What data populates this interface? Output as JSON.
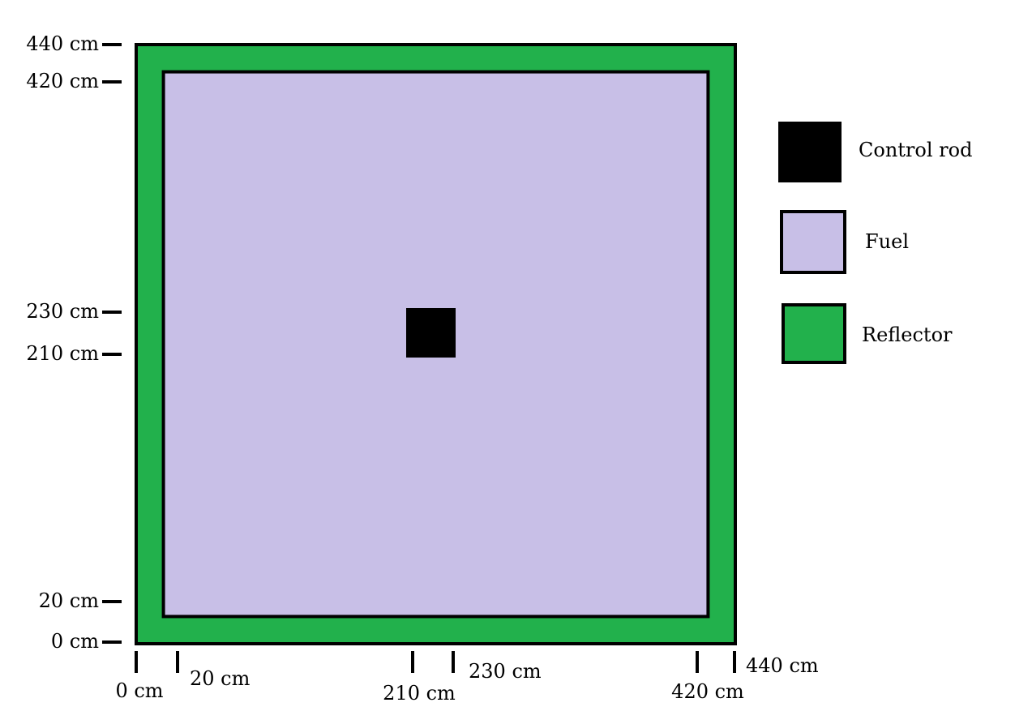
{
  "diagram": {
    "colors": {
      "reflector": "#22b14c",
      "fuel": "#c8bfe7",
      "control_rod": "#000000",
      "outline": "#000000"
    },
    "regions": {
      "reflector": [
        0,
        440
      ],
      "fuel": [
        20,
        420
      ],
      "control_rod": [
        210,
        230
      ]
    },
    "y_ticks": [
      {
        "value": 440,
        "label": "440 cm"
      },
      {
        "value": 420,
        "label": "420 cm"
      },
      {
        "value": 230,
        "label": "230 cm"
      },
      {
        "value": 210,
        "label": "210 cm"
      },
      {
        "value": 20,
        "label": "20 cm"
      },
      {
        "value": 0,
        "label": "0 cm"
      }
    ],
    "x_ticks": [
      {
        "value": 0,
        "label": "0 cm"
      },
      {
        "value": 20,
        "label": "20 cm"
      },
      {
        "value": 210,
        "label": "210 cm"
      },
      {
        "value": 230,
        "label": "230 cm"
      },
      {
        "value": 420,
        "label": "420 cm"
      },
      {
        "value": 440,
        "label": "440 cm"
      }
    ],
    "legend": [
      {
        "key": "control_rod",
        "label": "Control rod",
        "icon": "black-square-icon"
      },
      {
        "key": "fuel",
        "label": "Fuel",
        "icon": "lavender-square-icon"
      },
      {
        "key": "reflector",
        "label": "Reflector",
        "icon": "green-square-icon"
      }
    ]
  }
}
